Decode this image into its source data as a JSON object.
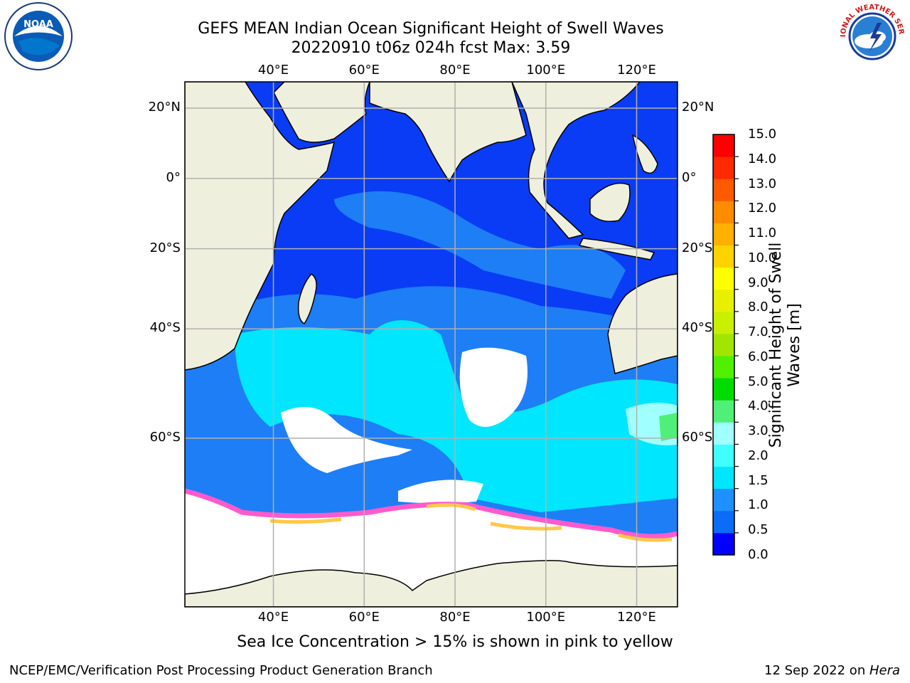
{
  "title": {
    "line1": "GEFS MEAN Indian Ocean Significant Height of Swell Waves",
    "line2": "20220910 t06z 024h fcst   Max: 3.59"
  },
  "map": {
    "lon_ticks": [
      "40°E",
      "60°E",
      "80°E",
      "100°E",
      "120°E"
    ],
    "lat_ticks": [
      "20°N",
      "0°",
      "20°S",
      "40°S",
      "60°S"
    ],
    "lon_values": [
      40,
      60,
      80,
      100,
      120
    ],
    "lat_values": [
      20,
      0,
      -20,
      -40,
      -60
    ],
    "lon_range": [
      20.5,
      129
    ],
    "lat_range": [
      -77,
      27
    ],
    "grid": true,
    "colors": {
      "land": "#efefdd",
      "ice": "#ffffff",
      "gridline": "#b0b0b0"
    }
  },
  "colorbar": {
    "label_line1": "Significant Height of Swell",
    "label_line2": "Waves [m]",
    "ticks": [
      "0.0",
      "0.5",
      "1.0",
      "1.5",
      "2.0",
      "3.0",
      "4.0",
      "5.0",
      "6.0",
      "7.0",
      "8.0",
      "9.0",
      "10.0",
      "11.0",
      "12.0",
      "13.0",
      "14.0",
      "15.0"
    ],
    "colors": [
      "#0000ff",
      "#0a6cf7",
      "#1e90ff",
      "#00e6ff",
      "#40ffff",
      "#a0ffff",
      "#50f078",
      "#00dc00",
      "#50f000",
      "#a0e600",
      "#c8f000",
      "#e6f000",
      "#ffff00",
      "#ffd200",
      "#ffb000",
      "#ff8c00",
      "#ff5a00",
      "#ff2a00",
      "#ff0000"
    ]
  },
  "note": "Sea Ice Concentration > 15% is shown in pink to yellow",
  "footer": {
    "left": "NCEP/EMC/Verification Post Processing Product Generation Branch",
    "right_date": "12 Sep 2022 on ",
    "right_host": "Hera"
  },
  "logos": {
    "left": {
      "icon": "noaa-logo-icon",
      "text": "NOAA"
    },
    "right": {
      "icon": "nws-logo-icon",
      "text": "NATIONAL WEATHER SERVICE"
    }
  }
}
